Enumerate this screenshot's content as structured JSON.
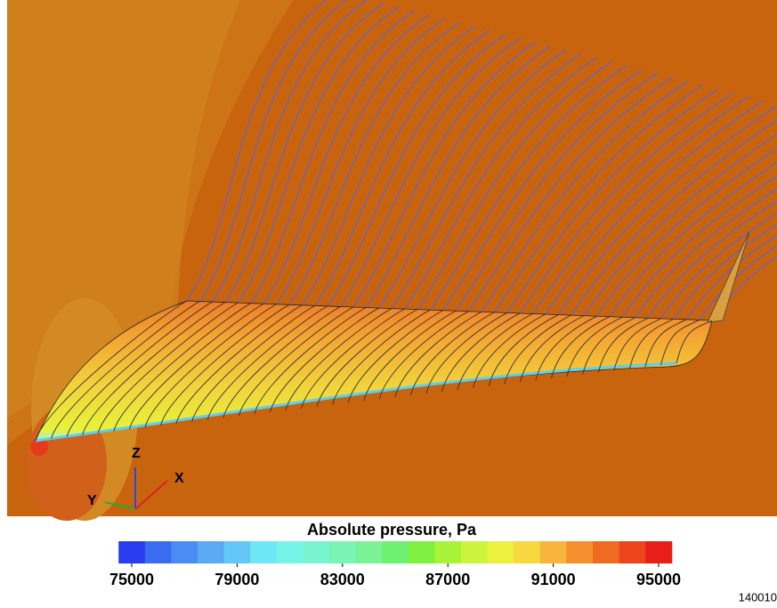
{
  "triad": {
    "z": "Z",
    "x": "X",
    "y": "Y"
  },
  "colorbar": {
    "title": "Absolute pressure, Pa",
    "range": [
      75000,
      95000
    ],
    "ticks": [
      75000,
      79000,
      83000,
      87000,
      91000,
      95000
    ],
    "colors": [
      "#2a3cf0",
      "#3a6cf0",
      "#4a8cf4",
      "#5aaaf6",
      "#64c8f6",
      "#6ee6f4",
      "#76f4e8",
      "#78f4d0",
      "#7af4b4",
      "#7cf296",
      "#6ef070",
      "#7ef040",
      "#a8f23a",
      "#ccf43c",
      "#ecf03e",
      "#f8d840",
      "#f8b43c",
      "#f4902e",
      "#f06a22",
      "#ec441c",
      "#e81e18"
    ]
  },
  "figure_id": "140010"
}
